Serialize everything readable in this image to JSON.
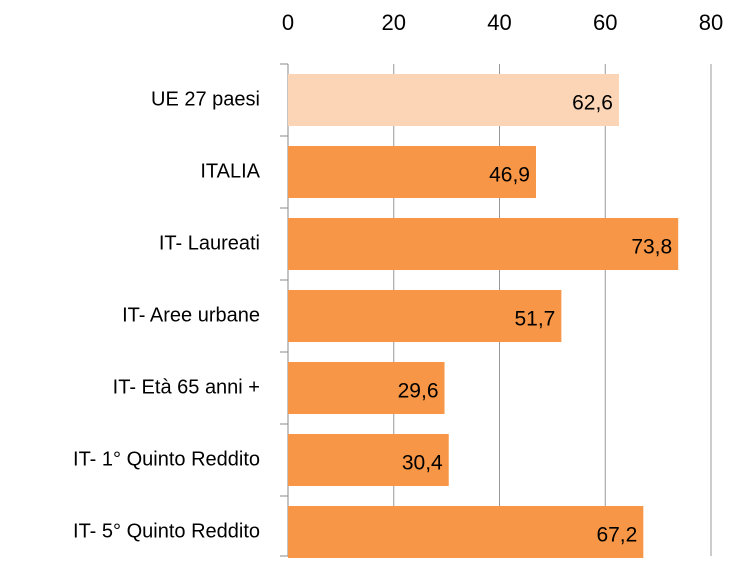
{
  "chart_data": {
    "type": "bar",
    "orientation": "horizontal",
    "categories": [
      "UE 27 paesi",
      "ITALIA",
      "IT- Laureati",
      "IT- Aree urbane",
      "IT- Età 65 anni +",
      "IT- 1° Quinto Reddito",
      "IT- 5° Quinto Reddito"
    ],
    "values": [
      62.6,
      46.9,
      73.8,
      51.7,
      29.6,
      30.4,
      67.2
    ],
    "value_labels": [
      "62,6",
      "46,9",
      "73,8",
      "51,7",
      "29,6",
      "30,4",
      "67,2"
    ],
    "colors": [
      "#fbd5b5",
      "#f79646",
      "#f79646",
      "#f79646",
      "#f79646",
      "#f79646",
      "#f79646"
    ],
    "xlim": [
      0,
      80
    ],
    "xticks": [
      0,
      20,
      40,
      60,
      80
    ],
    "grid": true,
    "axis_position": "top"
  }
}
